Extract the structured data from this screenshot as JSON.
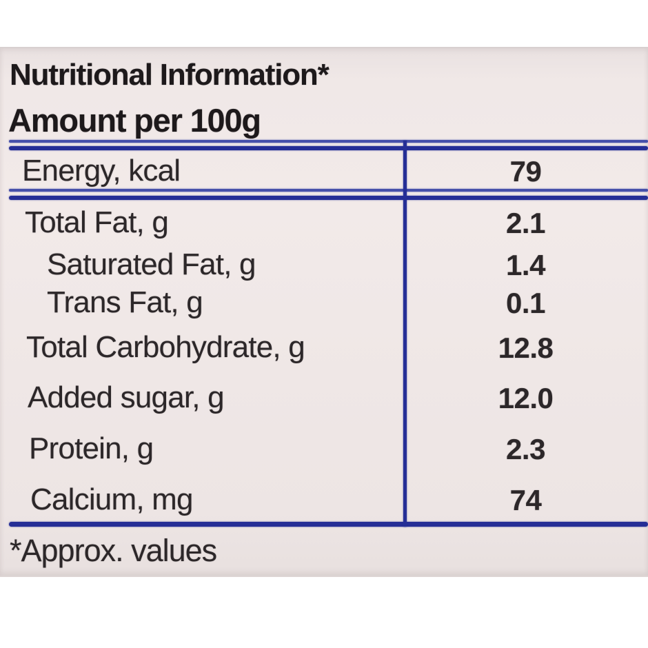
{
  "label": {
    "title": "Nutritional Information*",
    "subtitle": "Amount per 100g",
    "footnote": "*Approx. values",
    "colors": {
      "rule_blue": "#252e96",
      "rule_blue_thin": "#4650aa",
      "text_dark": "#2c2729",
      "heading_dark": "#1d191b",
      "label_bg": "#efe8e7",
      "page_bg": "#ffffff"
    },
    "table": {
      "rows": [
        {
          "label": "Energy, kcal",
          "value": "79",
          "indent": false
        },
        {
          "label": "Total Fat, g",
          "value": "2.1",
          "indent": false
        },
        {
          "label": "Saturated Fat, g",
          "value": "1.4",
          "indent": true
        },
        {
          "label": "Trans Fat, g",
          "value": "0.1",
          "indent": true
        },
        {
          "label": "Total Carbohydrate, g",
          "value": "12.8",
          "indent": false
        },
        {
          "label": "Added sugar, g",
          "value": "12.0",
          "indent": false
        },
        {
          "label": "Protein, g",
          "value": "2.3",
          "indent": false
        },
        {
          "label": "Calcium, mg",
          "value": "74",
          "indent": false
        }
      ]
    }
  }
}
